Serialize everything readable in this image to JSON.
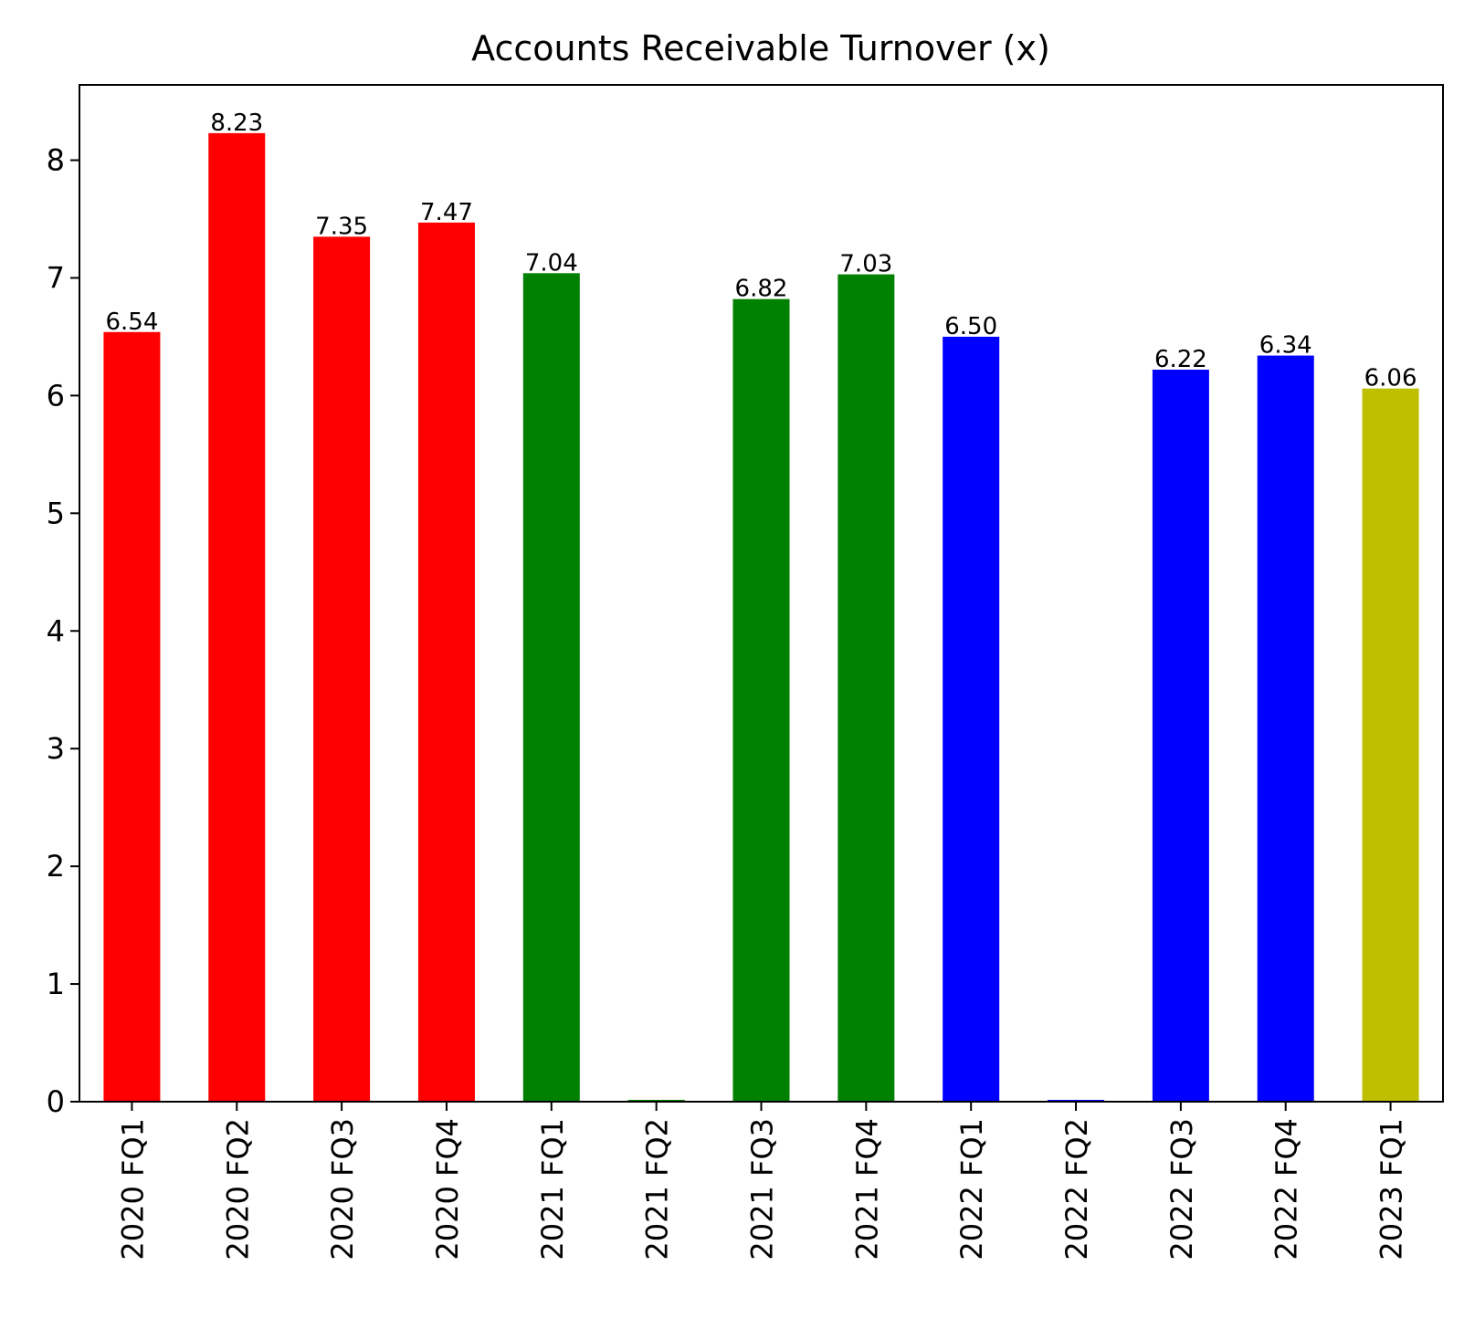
{
  "chart_data": {
    "type": "bar",
    "title": "Accounts Receivable Turnover (x)",
    "xlabel": "",
    "ylabel": "",
    "categories": [
      "2020 FQ1",
      "2020 FQ2",
      "2020 FQ3",
      "2020 FQ4",
      "2021 FQ1",
      "2021 FQ2",
      "2021 FQ3",
      "2021 FQ4",
      "2022 FQ1",
      "2022 FQ2",
      "2022 FQ3",
      "2022 FQ4",
      "2023 FQ1"
    ],
    "values": [
      6.54,
      8.23,
      7.35,
      7.47,
      7.04,
      0.0,
      6.82,
      7.03,
      6.5,
      0.0,
      6.22,
      6.34,
      6.06
    ],
    "value_labels": [
      "6.54",
      "8.23",
      "7.35",
      "7.47",
      "7.04",
      "",
      "6.82",
      "7.03",
      "6.50",
      "",
      "6.22",
      "6.34",
      "6.06"
    ],
    "bar_colors": [
      "#ff0000",
      "#ff0000",
      "#ff0000",
      "#ff0000",
      "#008000",
      "#008000",
      "#008000",
      "#008000",
      "#0000ff",
      "#0000ff",
      "#0000ff",
      "#0000ff",
      "#bfbf00"
    ],
    "ylim": [
      0,
      8.64
    ],
    "yticks": [
      0,
      1,
      2,
      3,
      4,
      5,
      6,
      7,
      8
    ],
    "grid": false,
    "legend": "none",
    "tick_label_rotation": 90
  }
}
